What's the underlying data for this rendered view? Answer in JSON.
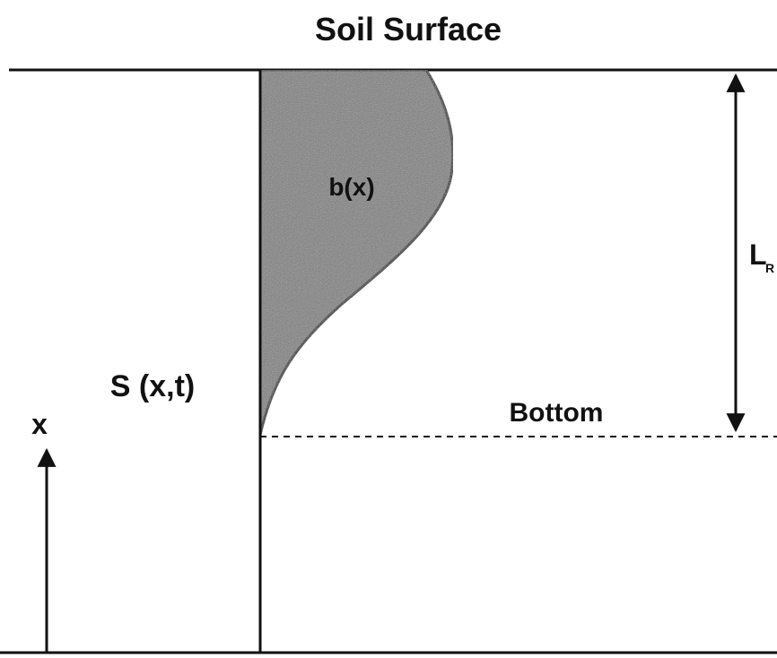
{
  "title": "Soil Surface",
  "shape_label": "b(x)",
  "depth_label": {
    "main": "L",
    "sub": "R"
  },
  "state_label": "S (x,t)",
  "bottom_label": "Bottom",
  "axis_label": "x"
}
